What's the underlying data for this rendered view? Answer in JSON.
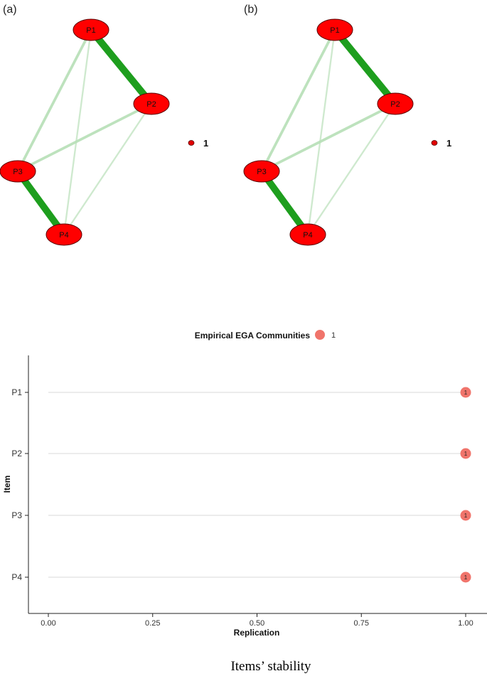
{
  "network_panels": [
    {
      "label": "(a)",
      "nodes": [
        "P1",
        "P2",
        "P3",
        "P4"
      ],
      "edges": [
        {
          "from": "P1",
          "to": "P2",
          "weight": 0.62
        },
        {
          "from": "P3",
          "to": "P4",
          "weight": 0.6
        },
        {
          "from": "P1",
          "to": "P3",
          "weight": 0.18
        },
        {
          "from": "P2",
          "to": "P3",
          "weight": 0.18
        },
        {
          "from": "P1",
          "to": "P4",
          "weight": 0.08
        },
        {
          "from": "P2",
          "to": "P4",
          "weight": 0.08
        }
      ],
      "legend": "1"
    },
    {
      "label": "(b)",
      "nodes": [
        "P1",
        "P2",
        "P3",
        "P4"
      ],
      "edges": [
        {
          "from": "P1",
          "to": "P2",
          "weight": 0.62
        },
        {
          "from": "P3",
          "to": "P4",
          "weight": 0.6
        },
        {
          "from": "P1",
          "to": "P3",
          "weight": 0.18
        },
        {
          "from": "P2",
          "to": "P3",
          "weight": 0.18
        },
        {
          "from": "P1",
          "to": "P4",
          "weight": 0.08
        },
        {
          "from": "P2",
          "to": "P4",
          "weight": 0.08
        }
      ],
      "legend": "1"
    }
  ],
  "colors": {
    "node_fill": "#ff0000",
    "node_stroke": "#5a0000",
    "edge_strong": "#1e9e1e",
    "edge_weak": "#b9e0b9",
    "point_fill": "#f0746b",
    "gridline": "#d9d9d9"
  },
  "chart_data": {
    "type": "scatter",
    "legend": {
      "title": "Empirical EGA Communities",
      "entries": [
        "1"
      ],
      "position": "top"
    },
    "categories": [
      "P1",
      "P2",
      "P3",
      "P4"
    ],
    "values": [
      1.0,
      1.0,
      1.0,
      1.0
    ],
    "point_labels": [
      "1",
      "1",
      "1",
      "1"
    ],
    "xlabel": "Replication",
    "ylabel": "Item",
    "xlim": [
      0,
      1
    ],
    "xticks": [
      "0.00",
      "0.25",
      "0.50",
      "0.75",
      "1.00"
    ],
    "grid": "horizontal"
  },
  "caption": "Items’ stability"
}
